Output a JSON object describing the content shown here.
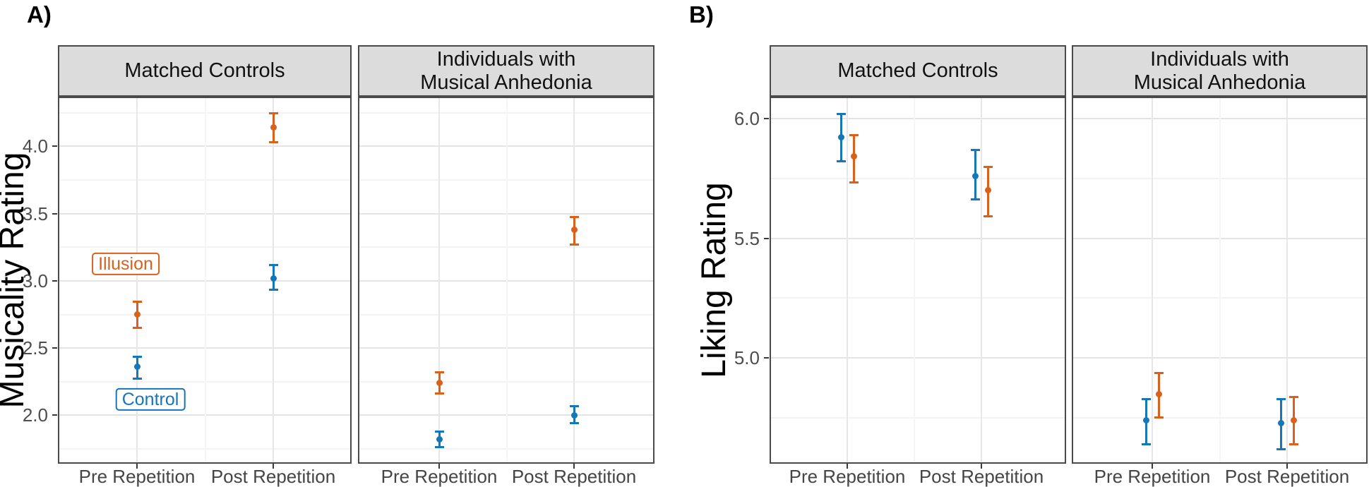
{
  "series_colors": {
    "Illusion": "#d9611b",
    "Control": "#1576b8"
  },
  "chart_data": [
    {
      "type": "scatter",
      "subtype": "pointrange-with-error-bars",
      "panel_label": "A)",
      "ylabel": "Musicality Rating",
      "xlabel": "",
      "ylim": [
        1.64,
        4.37
      ],
      "yticks": [
        2.0,
        2.5,
        3.0,
        3.5,
        4.0
      ],
      "ytick_labels": [
        "2.0",
        "2.5",
        "3.0",
        "3.5",
        "4.0"
      ],
      "categories": [
        "Pre Repetition",
        "Post Repetition"
      ],
      "grid": true,
      "legend_position": "inline-annotations",
      "facets": [
        {
          "title": "Matched Controls",
          "title_lines": [
            "Matched Controls"
          ],
          "series": [
            {
              "name": "Illusion",
              "values": [
                2.75,
                4.14
              ],
              "ci_low": [
                2.65,
                4.03
              ],
              "ci_high": [
                2.85,
                4.25
              ]
            },
            {
              "name": "Control",
              "values": [
                2.36,
                3.02
              ],
              "ci_low": [
                2.27,
                2.93
              ],
              "ci_high": [
                2.44,
                3.12
              ]
            }
          ]
        },
        {
          "title": "Individuals with Musical Anhedonia",
          "title_lines": [
            "Individuals with",
            "Musical Anhedonia"
          ],
          "series": [
            {
              "name": "Illusion",
              "values": [
                2.24,
                3.38
              ],
              "ci_low": [
                2.16,
                3.27
              ],
              "ci_high": [
                2.32,
                3.48
              ]
            },
            {
              "name": "Control",
              "values": [
                1.82,
                2.0
              ],
              "ci_low": [
                1.76,
                1.94
              ],
              "ci_high": [
                1.88,
                2.07
              ]
            }
          ]
        }
      ],
      "annotations": [
        {
          "text": "Illusion",
          "series": "Illusion"
        },
        {
          "text": "Control",
          "series": "Control"
        }
      ]
    },
    {
      "type": "scatter",
      "subtype": "pointrange-with-error-bars",
      "panel_label": "B)",
      "ylabel": "Liking Rating",
      "xlabel": "",
      "ylim": [
        4.56,
        6.09
      ],
      "yticks": [
        5.0,
        5.5,
        6.0
      ],
      "ytick_labels": [
        "5.0",
        "5.5",
        "6.0"
      ],
      "categories": [
        "Pre Repetition",
        "Post Repetition"
      ],
      "grid": true,
      "legend_position": "none",
      "facets": [
        {
          "title": "Matched Controls",
          "title_lines": [
            "Matched Controls"
          ],
          "series": [
            {
              "name": "Illusion",
              "values": [
                5.84,
                5.7
              ],
              "ci_low": [
                5.73,
                5.59
              ],
              "ci_high": [
                5.93,
                5.8
              ]
            },
            {
              "name": "Control",
              "values": [
                5.92,
                5.76
              ],
              "ci_low": [
                5.82,
                5.66
              ],
              "ci_high": [
                6.02,
                5.87
              ]
            }
          ]
        },
        {
          "title": "Individuals with Musical Anhedonia",
          "title_lines": [
            "Individuals with",
            "Musical Anhedonia"
          ],
          "series": [
            {
              "name": "Illusion",
              "values": [
                4.85,
                4.74
              ],
              "ci_low": [
                4.75,
                4.64
              ],
              "ci_high": [
                4.94,
                4.84
              ]
            },
            {
              "name": "Control",
              "values": [
                4.74,
                4.73
              ],
              "ci_low": [
                4.64,
                4.62
              ],
              "ci_high": [
                4.83,
                4.83
              ]
            }
          ]
        }
      ],
      "annotations": []
    }
  ]
}
